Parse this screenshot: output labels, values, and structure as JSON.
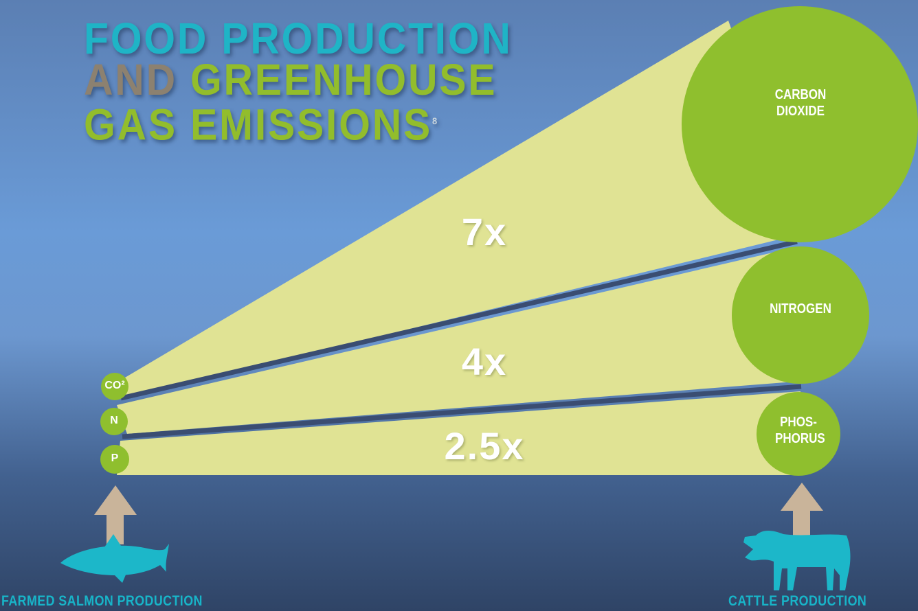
{
  "title": {
    "line1": "FOOD PRODUCTION",
    "line2_and": "AND",
    "line2_rest": "GREENHOUSE",
    "line3": "GAS EMISSIONS",
    "footnote": "8"
  },
  "ratios": {
    "carbon_dioxide": "7x",
    "nitrogen": "4x",
    "phosphorus": "2.5x"
  },
  "cattle_circles": {
    "carbon_dioxide": "CARBON DIOXIDE",
    "nitrogen": "NITROGEN",
    "phosphorus": "PHOS- PHORUS"
  },
  "salmon_circles": {
    "carbon_dioxide": "CO²",
    "nitrogen": "N",
    "phosphorus": "P"
  },
  "captions": {
    "left": "FARMED SALMON PRODUCTION",
    "right": "CATTLE PRODUCTION"
  },
  "icons": {
    "left": "fish-icon",
    "right": "cow-icon",
    "arrows": "up-arrow-icon"
  },
  "colors": {
    "beam": "#e0e394",
    "circle": "#8fbf2e",
    "title_cyan": "#1fb4c6",
    "title_green": "#92bd2c",
    "title_brown": "#8c8170",
    "divider": "#3a4d72",
    "arrow": "#c9b49a",
    "animal": "#1cb7c9"
  }
}
